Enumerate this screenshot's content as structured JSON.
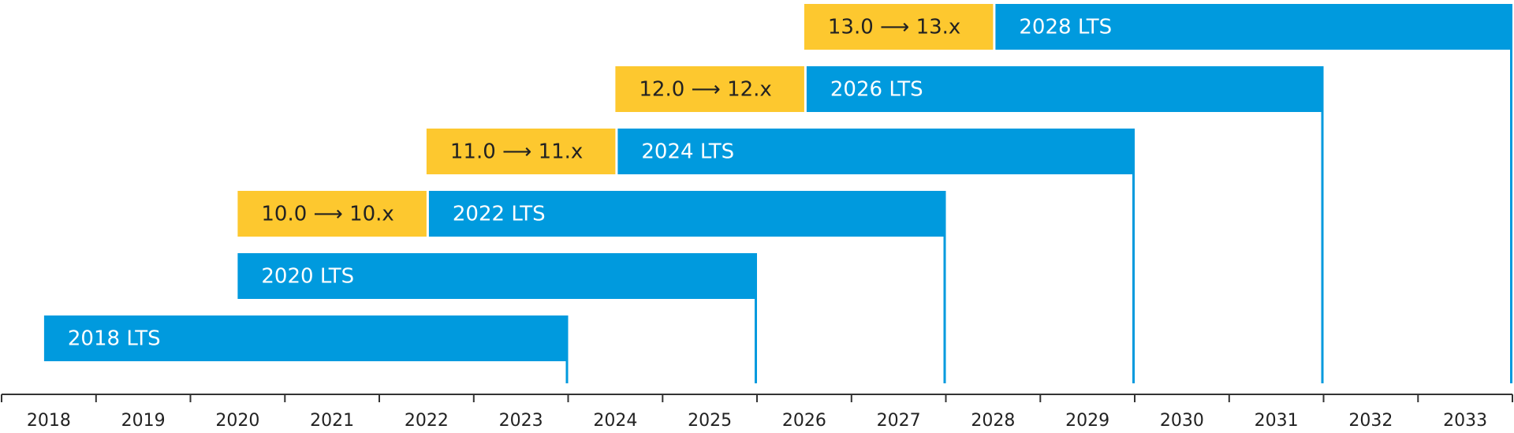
{
  "chart_data": {
    "type": "gantt",
    "x_axis": {
      "type": "year",
      "range": [
        2017.5,
        2033.5
      ],
      "tick_labels": [
        "2018",
        "2019",
        "2020",
        "2021",
        "2022",
        "2023",
        "2024",
        "2025",
        "2026",
        "2027",
        "2028",
        "2029",
        "2030",
        "2031",
        "2032",
        "2033"
      ]
    },
    "colors": {
      "lts": "#009ade",
      "feature": "#fdc82f",
      "lts_text": "#ffffff",
      "feature_text": "#222222",
      "axis": "#333333"
    },
    "rows": [
      {
        "bars": [
          {
            "label": "2018 LTS",
            "kind": "lts",
            "start": 2017.95,
            "end": 2023.5
          }
        ],
        "end_marker": 2023.5
      },
      {
        "bars": [
          {
            "label": "2020 LTS",
            "kind": "lts",
            "start": 2020.0,
            "end": 2025.5
          }
        ],
        "end_marker": 2025.5
      },
      {
        "bars": [
          {
            "label": "10.0 ⟶ 10.x",
            "kind": "feature",
            "start": 2020.0,
            "end": 2022.0
          },
          {
            "label": "2022 LTS",
            "kind": "lts",
            "start": 2022.0,
            "end": 2027.5
          }
        ],
        "end_marker": 2027.5
      },
      {
        "bars": [
          {
            "label": "11.0 ⟶ 11.x",
            "kind": "feature",
            "start": 2022.0,
            "end": 2024.0
          },
          {
            "label": "2024 LTS",
            "kind": "lts",
            "start": 2024.0,
            "end": 2029.5
          }
        ],
        "end_marker": 2029.5
      },
      {
        "bars": [
          {
            "label": "12.0 ⟶ 12.x",
            "kind": "feature",
            "start": 2024.0,
            "end": 2026.0
          },
          {
            "label": "2026 LTS",
            "kind": "lts",
            "start": 2026.0,
            "end": 2031.5
          }
        ],
        "end_marker": 2031.5
      },
      {
        "bars": [
          {
            "label": "13.0 ⟶ 13.x",
            "kind": "feature",
            "start": 2026.0,
            "end": 2028.0
          },
          {
            "label": "2028 LTS",
            "kind": "lts",
            "start": 2028.0,
            "end": 2033.5
          }
        ],
        "end_marker": 2033.5
      }
    ]
  }
}
